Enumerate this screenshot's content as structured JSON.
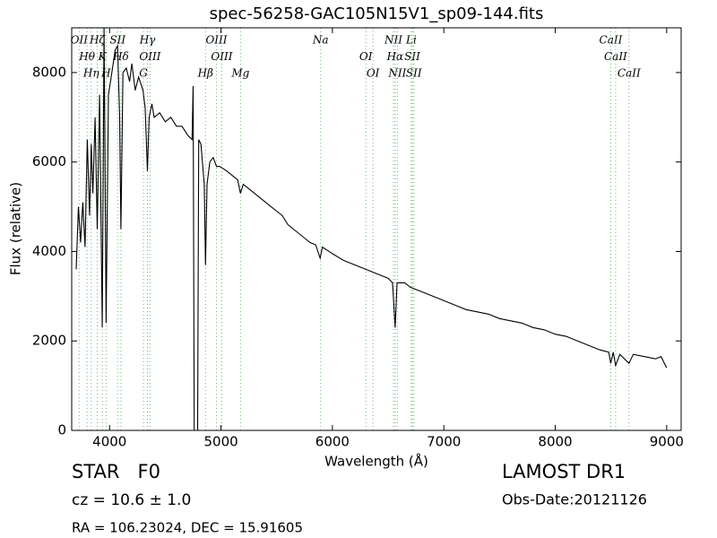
{
  "chart_data": {
    "type": "line",
    "title": "spec-56258-GAC105N15V1_sp09-144.fits",
    "x_label": "Wavelength (Å)",
    "y_label": "Flux (relative)",
    "xlim": [
      3660,
      9130
    ],
    "ylim": [
      0,
      9000
    ],
    "xticks": [
      4000,
      5000,
      6000,
      7000,
      8000,
      9000
    ],
    "yticks": [
      0,
      2000,
      4000,
      6000,
      8000
    ],
    "color": "#000000",
    "line_color": "#66bb66",
    "x": [
      3700,
      3720,
      3740,
      3760,
      3780,
      3800,
      3820,
      3835,
      3850,
      3870,
      3889,
      3910,
      3934,
      3950,
      3969,
      3990,
      4020,
      4050,
      4072,
      4090,
      4102,
      4120,
      4150,
      4180,
      4200,
      4230,
      4260,
      4300,
      4320,
      4340,
      4355,
      4380,
      4400,
      4450,
      4500,
      4550,
      4600,
      4650,
      4700,
      4740,
      4750,
      4760,
      4790,
      4800,
      4820,
      4850,
      4861,
      4875,
      4900,
      4930,
      4960,
      4990,
      5050,
      5100,
      5150,
      5175,
      5200,
      5250,
      5300,
      5350,
      5400,
      5450,
      5500,
      5550,
      5600,
      5650,
      5700,
      5750,
      5800,
      5850,
      5890,
      5910,
      6000,
      6100,
      6200,
      6300,
      6400,
      6500,
      6540,
      6563,
      6580,
      6650,
      6700,
      6800,
      6900,
      7000,
      7100,
      7200,
      7300,
      7400,
      7500,
      7600,
      7700,
      7800,
      7900,
      8000,
      8100,
      8200,
      8300,
      8400,
      8480,
      8498,
      8520,
      8542,
      8580,
      8662,
      8700,
      8800,
      8900,
      8950,
      9000
    ],
    "values": [
      3600,
      5000,
      4200,
      5100,
      4100,
      6500,
      4800,
      6400,
      5300,
      7000,
      4500,
      7500,
      2300,
      9000,
      2400,
      7500,
      8000,
      8500,
      8600,
      7000,
      4500,
      8000,
      8100,
      7800,
      8200,
      7600,
      7900,
      7600,
      7200,
      5800,
      7000,
      7300,
      7000,
      7100,
      6900,
      7000,
      6800,
      6800,
      6600,
      6500,
      7700,
      0,
      0,
      6500,
      6400,
      5500,
      3700,
      5500,
      6000,
      6100,
      5900,
      5900,
      5800,
      5700,
      5600,
      5300,
      5500,
      5400,
      5300,
      5200,
      5100,
      5000,
      4900,
      4800,
      4600,
      4500,
      4400,
      4300,
      4200,
      4150,
      3850,
      4100,
      3950,
      3800,
      3700,
      3600,
      3500,
      3400,
      3300,
      2300,
      3300,
      3300,
      3200,
      3100,
      3000,
      2900,
      2800,
      2700,
      2650,
      2600,
      2500,
      2450,
      2400,
      2300,
      2250,
      2150,
      2100,
      2000,
      1900,
      1800,
      1750,
      1500,
      1750,
      1450,
      1700,
      1500,
      1700,
      1650,
      1600,
      1650,
      1400
    ],
    "lines": [
      {
        "label": "OII",
        "wavelength": 3727
      },
      {
        "label": "Hθ",
        "wavelength": 3798
      },
      {
        "label": "Hη",
        "wavelength": 3835
      },
      {
        "label": "Hζ",
        "wavelength": 3889
      },
      {
        "label": "K",
        "wavelength": 3934
      },
      {
        "label": "H",
        "wavelength": 3969
      },
      {
        "label": "SII",
        "wavelength": 4072
      },
      {
        "label": "Hδ",
        "wavelength": 4102
      },
      {
        "label": "G",
        "wavelength": 4304
      },
      {
        "label": "Hγ",
        "wavelength": 4340
      },
      {
        "label": "OIII",
        "wavelength": 4363
      },
      {
        "label": "Hβ",
        "wavelength": 4861
      },
      {
        "label": "OIII",
        "wavelength": 4959
      },
      {
        "label": "OIII",
        "wavelength": 5007
      },
      {
        "label": "Mg",
        "wavelength": 5175
      },
      {
        "label": "Na",
        "wavelength": 5894
      },
      {
        "label": "OI",
        "wavelength": 6300
      },
      {
        "label": "OI",
        "wavelength": 6364
      },
      {
        "label": "NII",
        "wavelength": 6548
      },
      {
        "label": "Hα",
        "wavelength": 6563
      },
      {
        "label": "NII",
        "wavelength": 6583
      },
      {
        "label": "Li",
        "wavelength": 6708
      },
      {
        "label": "SII",
        "wavelength": 6717
      },
      {
        "label": "SII",
        "wavelength": 6731
      },
      {
        "label": "CaII",
        "wavelength": 8498
      },
      {
        "label": "CaII",
        "wavelength": 8542
      },
      {
        "label": "CaII",
        "wavelength": 8662
      }
    ],
    "class_text": "STAR   F0",
    "cz_text": "cz = 10.6 ± 1.0",
    "coord_text": "RA = 106.23024, DEC = 15.91605",
    "survey_text": "LAMOST DR1",
    "date_text": "Obs-Date:20121126"
  }
}
